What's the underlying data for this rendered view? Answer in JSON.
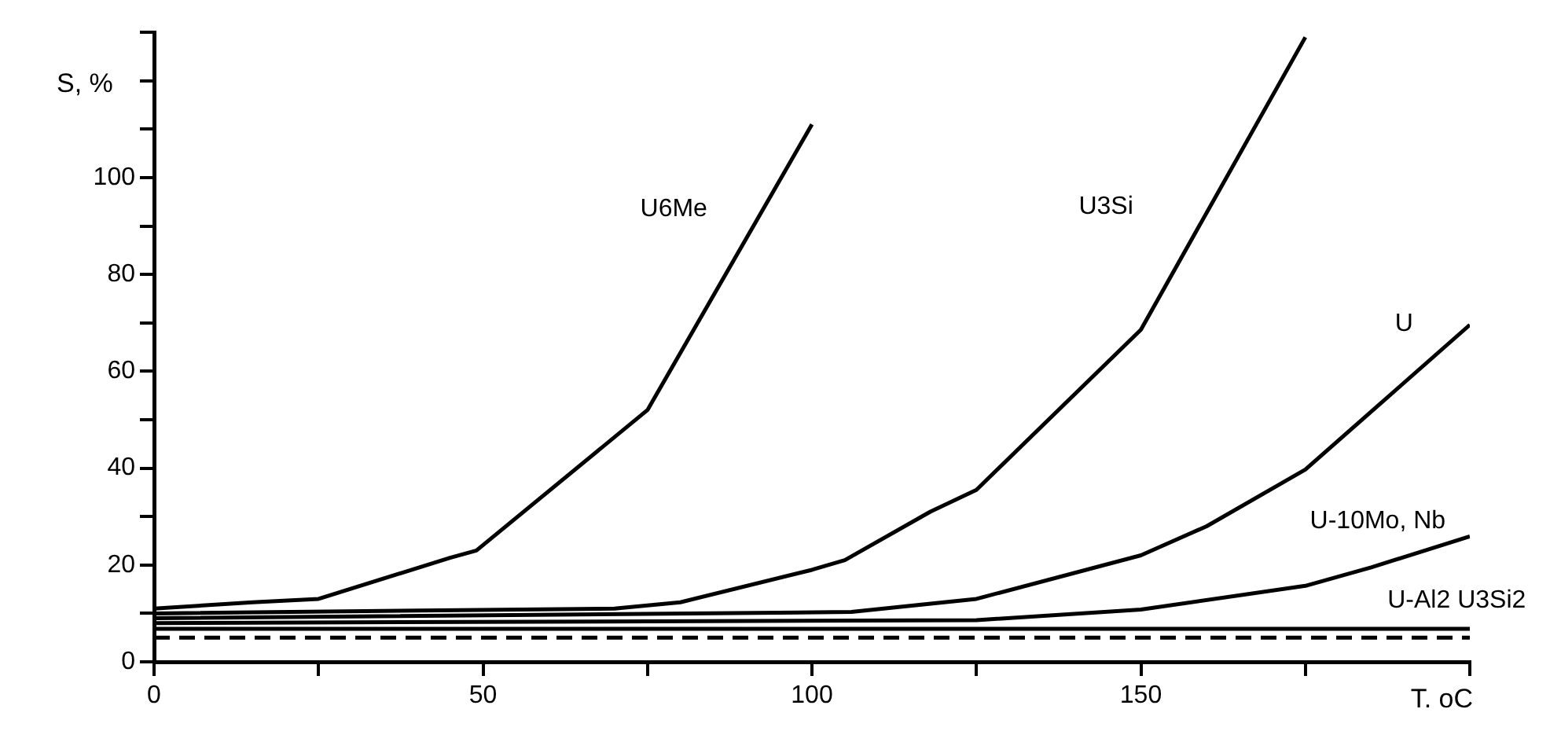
{
  "chart_data": {
    "type": "line",
    "xlabel": "T. oC",
    "ylabel": "S, %",
    "xlim": [
      0,
      200
    ],
    "ylim": [
      0,
      130
    ],
    "xticks": [
      0,
      {
        "value": 25,
        "label": null
      },
      50,
      {
        "value": 75,
        "label": null
      },
      100,
      {
        "value": 125,
        "label": null
      },
      150,
      {
        "value": 175,
        "label": null
      },
      {
        "value": 200,
        "label": null
      }
    ],
    "yticks": [
      0,
      {
        "value": 10,
        "label": null
      },
      20,
      {
        "value": 30,
        "label": null
      },
      40,
      {
        "value": 50,
        "label": null
      },
      60,
      {
        "value": 70,
        "label": null
      },
      80,
      {
        "value": 90,
        "label": null
      },
      100,
      {
        "value": 110,
        "label": null
      },
      {
        "value": 120,
        "label": null
      },
      {
        "value": 130,
        "label": null
      }
    ],
    "legend": false,
    "marker": "none",
    "line_style": "solid",
    "series": [
      {
        "name": "U6Me",
        "color": "#000000",
        "x": [
          0,
          15,
          25,
          45,
          49,
          75,
          100
        ],
        "values": [
          11,
          12.3,
          13,
          21.5,
          23,
          52,
          111
        ]
      },
      {
        "name": "U3Si",
        "color": "#000000",
        "x": [
          0,
          70,
          80,
          100,
          105,
          118,
          125,
          150,
          175
        ],
        "values": [
          10,
          11,
          12.3,
          19,
          21,
          31,
          35.5,
          68.6,
          129
        ]
      },
      {
        "name": "U",
        "color": "#000000",
        "x": [
          0,
          106,
          125,
          150,
          160,
          175,
          200
        ],
        "values": [
          9,
          10.3,
          13,
          22,
          28,
          39.7,
          69.6
        ]
      },
      {
        "name": "U-10Mo, Nb",
        "color": "#000000",
        "x": [
          0,
          125,
          150,
          175,
          185,
          200
        ],
        "values": [
          8,
          8.6,
          10.8,
          15.7,
          19.5,
          25.9
        ]
      },
      {
        "name": "U-Al2 U3Si2",
        "color": "#000000",
        "x": [
          0,
          200
        ],
        "values": [
          6.8,
          6.8
        ]
      },
      {
        "color": "#000000",
        "x": [
          0,
          200
        ],
        "values": [
          5,
          5
        ],
        "line_style": "dashed"
      }
    ]
  }
}
